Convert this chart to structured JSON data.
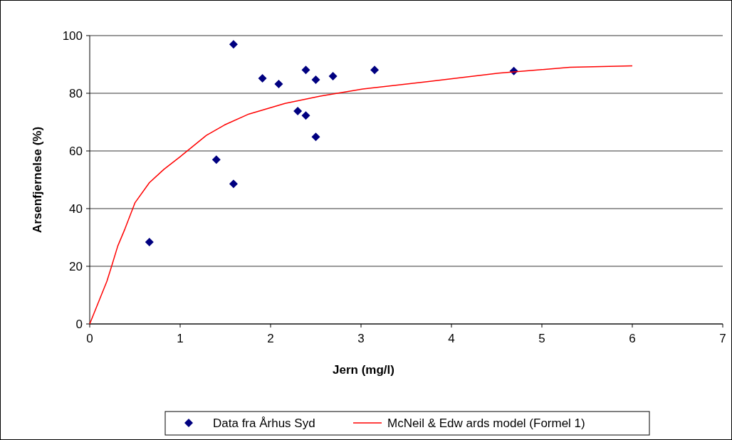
{
  "chart_data": {
    "type": "scatter",
    "xlabel": "Jern (mg/l)",
    "ylabel": "Arsenfjernelse (%)",
    "xlim": [
      0,
      7
    ],
    "xticks": [
      0,
      1,
      2,
      3,
      4,
      5,
      6,
      7
    ],
    "ylim": [
      0,
      100
    ],
    "yticks": [
      0,
      20,
      40,
      60,
      80,
      100
    ],
    "grid": "y",
    "legend": "bottom",
    "series": [
      {
        "name": "Data fra Århus Syd",
        "color": "#000080",
        "marker": "diamond",
        "x": [
          0.66,
          1.4,
          1.59,
          1.59,
          1.91,
          2.09,
          2.3,
          2.39,
          2.39,
          2.5,
          2.5,
          2.69,
          3.15,
          4.69
        ],
        "values": [
          28.4,
          57,
          48.6,
          97,
          85.2,
          83.2,
          73.8,
          88.1,
          72.3,
          84.7,
          64.9,
          85.9,
          88.1,
          87.7
        ]
      },
      {
        "name": "McNeil & Edw ards model (Formel 1)",
        "type": "line",
        "color": "#ff0000",
        "marker": "none",
        "x": [
          0,
          0.11,
          0.19,
          0.24,
          0.31,
          0.39,
          0.5,
          0.66,
          0.82,
          1,
          1.29,
          1.49,
          1.76,
          2.16,
          2.55,
          3.02,
          3.73,
          4.52,
          5.31,
          6
        ],
        "values": [
          0,
          8.6,
          14.8,
          19.8,
          27,
          33,
          42,
          49,
          53.6,
          58,
          65.4,
          69,
          72.8,
          76.5,
          79,
          81.5,
          84,
          87,
          89,
          89.5
        ]
      }
    ]
  }
}
